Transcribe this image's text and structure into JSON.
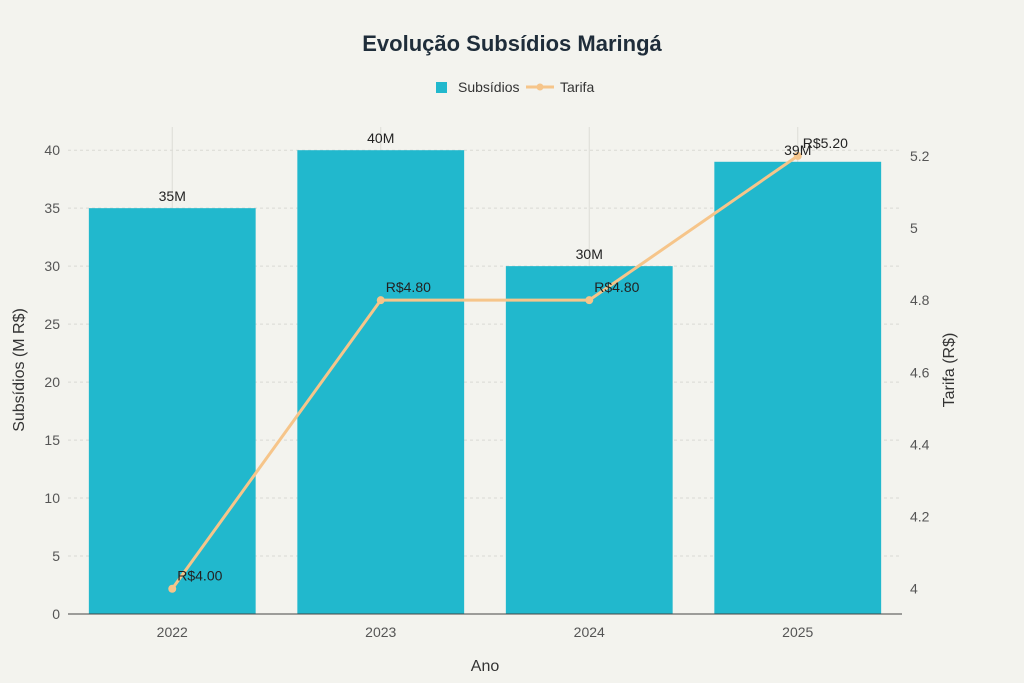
{
  "chart_data": {
    "type": "bar",
    "title": "Evolução Subsídios Maringá",
    "xlabel": "Ano",
    "ylabel": "Subsídios (M R$)",
    "y2label": "Tarifa (R$)",
    "categories": [
      "2022",
      "2023",
      "2024",
      "2025"
    ],
    "ylim": [
      0,
      42
    ],
    "y2lim": [
      3.93,
      5.28
    ],
    "yticks": [
      0,
      5,
      10,
      15,
      20,
      25,
      30,
      35,
      40
    ],
    "y2ticks": [
      "4",
      "4.2",
      "4.4",
      "4.6",
      "4.8",
      "5",
      "5.2"
    ],
    "y2tick_values": [
      4,
      4.2,
      4.4,
      4.6,
      4.8,
      5,
      5.2
    ],
    "legend_position": "top-center",
    "series": [
      {
        "name": "Subsídios",
        "kind": "bar",
        "axis": "left",
        "color": "#21b8cd",
        "values": [
          35,
          40,
          30,
          39
        ],
        "labels": [
          "35M",
          "40M",
          "30M",
          "39M"
        ]
      },
      {
        "name": "Tarifa",
        "kind": "line",
        "axis": "right",
        "color": "#f6c58a",
        "values": [
          4.0,
          4.8,
          4.8,
          5.2
        ],
        "labels": [
          "R$4.00",
          "R$4.80",
          "R$4.80",
          "R$5.20"
        ]
      }
    ]
  }
}
